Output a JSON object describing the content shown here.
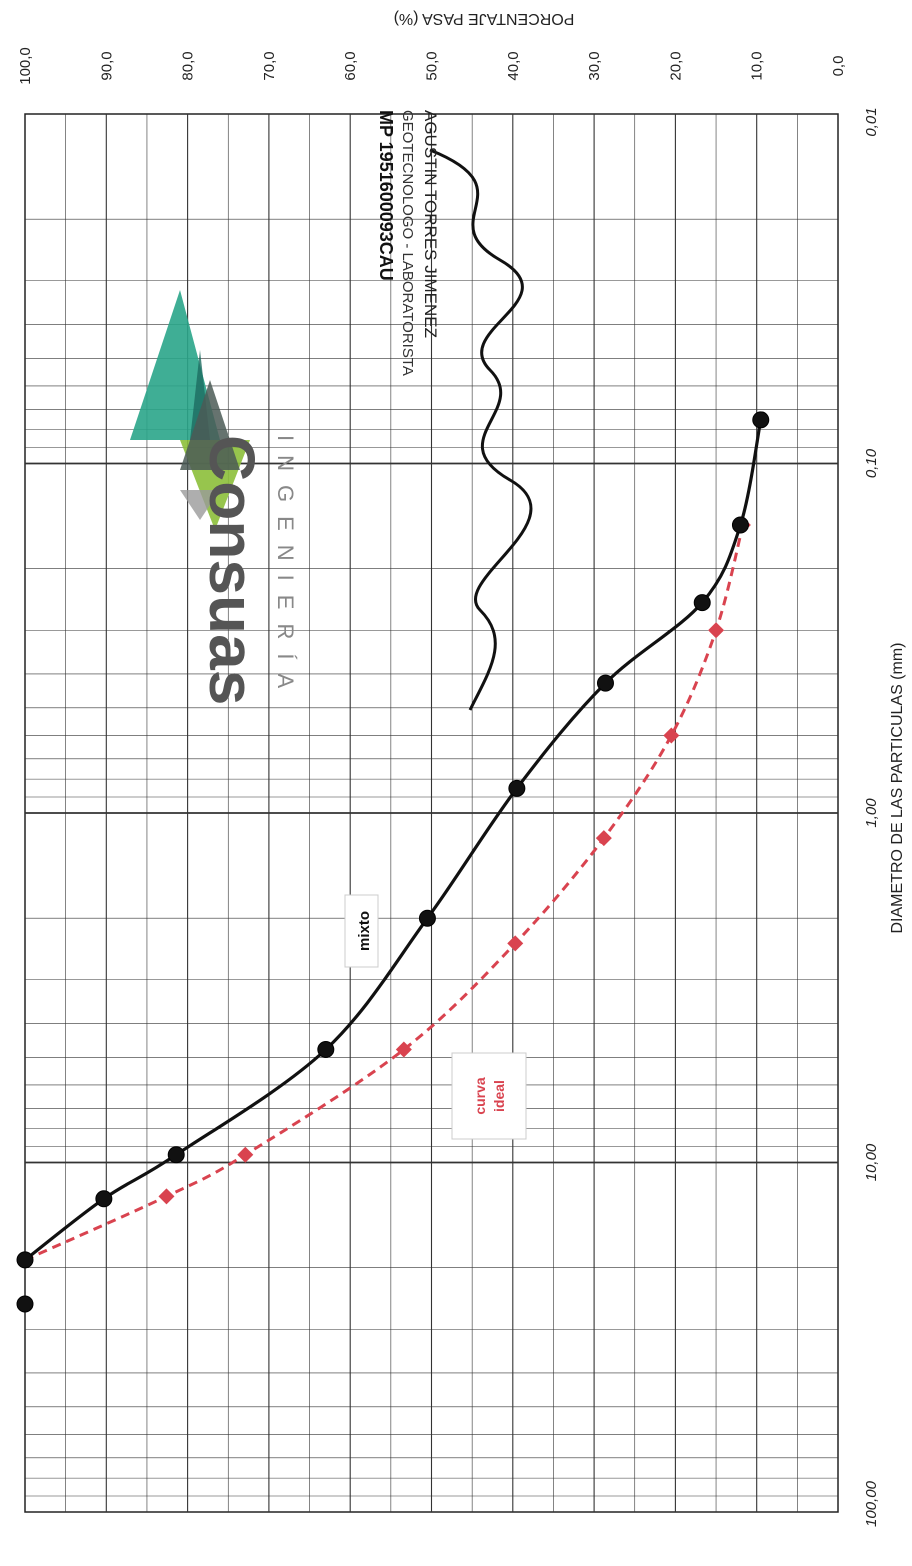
{
  "chart_data": {
    "type": "line",
    "orientation": "rotated-90-clockwise",
    "x_axis": {
      "label": "DIAMETRO DE LAS PARTICULAS (mm)",
      "scale": "log",
      "ticks": [
        "0,01",
        "0,10",
        "1,00",
        "10,00",
        "100,00"
      ],
      "tick_values": [
        0.01,
        0.1,
        1,
        10,
        100
      ],
      "range": [
        0.01,
        100
      ]
    },
    "y_axis": {
      "label": "PORCENTAJE PASA (%)",
      "scale": "linear",
      "ticks": [
        "0,0",
        "10,0",
        "20,0",
        "30,0",
        "40,0",
        "50,0",
        "60,0",
        "70,0",
        "80,0",
        "90,0",
        "100,0"
      ],
      "tick_values": [
        0,
        10,
        20,
        30,
        40,
        50,
        60,
        70,
        80,
        90,
        100
      ],
      "range": [
        0,
        100
      ]
    },
    "grid": true,
    "series": [
      {
        "name": "mixto",
        "color": "#111111",
        "style": "solid",
        "marker": "circle",
        "points": [
          {
            "x": 25.4,
            "y": 100.0
          },
          {
            "x": 19.0,
            "y": 100.0
          },
          {
            "x": 12.7,
            "y": 90.3
          },
          {
            "x": 9.5,
            "y": 81.4
          },
          {
            "x": 4.75,
            "y": 63.0
          },
          {
            "x": 2.0,
            "y": 50.5
          },
          {
            "x": 0.85,
            "y": 39.5
          },
          {
            "x": 0.425,
            "y": 28.6
          },
          {
            "x": 0.25,
            "y": 16.7
          },
          {
            "x": 0.15,
            "y": 12.0
          },
          {
            "x": 0.075,
            "y": 9.5
          }
        ]
      },
      {
        "name": "curva ideal",
        "color": "#d9434f",
        "style": "dashed",
        "marker": "diamond",
        "points": [
          {
            "x": 19.0,
            "y": 100.0
          },
          {
            "x": 12.5,
            "y": 82.6
          },
          {
            "x": 9.5,
            "y": 72.9
          },
          {
            "x": 4.75,
            "y": 53.4
          },
          {
            "x": 2.36,
            "y": 39.7
          },
          {
            "x": 1.18,
            "y": 28.8
          },
          {
            "x": 0.6,
            "y": 20.5
          },
          {
            "x": 0.3,
            "y": 15.0
          },
          {
            "x": 0.15,
            "y": 11.7
          }
        ]
      }
    ]
  },
  "logo": {
    "name": "Consuas",
    "subtitle": "INGENIERÍA"
  },
  "stamp": {
    "name": "AGUSTIN TORRES JIMENEZ",
    "role": "GEOTECNOLOGO - LABORATORISTA",
    "mp": "MP 1951600093CAU"
  },
  "labels": {
    "mixto": "mixto",
    "ideal_line1": "curva",
    "ideal_line2": "ideal"
  },
  "colors": {
    "grid": "#333333",
    "mixto": "#111111",
    "ideal": "#d9434f",
    "logo_teal": "#2aa58a",
    "logo_lime": "#8cbf3a",
    "logo_gray": "#555555"
  }
}
